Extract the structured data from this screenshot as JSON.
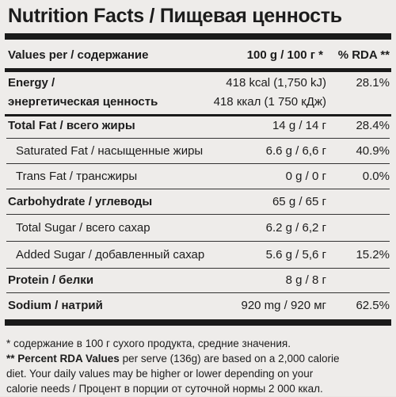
{
  "title": "Nutrition Facts / Пищевая ценность",
  "header": {
    "label": "Values per / содержание",
    "amount": "100 g / 100 г *",
    "rda": "% RDA **"
  },
  "energy": {
    "label1": "Energy /",
    "label2": "энергетическая ценность",
    "amount1": "418 kcal (1,750 kJ)",
    "amount2": "418 ккал (1 750 кДж)",
    "rda": "28.1%"
  },
  "rows": [
    {
      "label": "Total Fat / всего жиры",
      "amount": "14 g / 14 г",
      "rda": "28.4%"
    },
    {
      "label": "Saturated Fat / насыщенные жиры",
      "amount": "6.6 g / 6,6 г",
      "rda": "40.9%"
    },
    {
      "label": "Trans Fat / трансжиры",
      "amount": "0 g / 0 г",
      "rda": "0.0%"
    },
    {
      "label": "Carbohydrate / углеводы",
      "amount": "65 g / 65 г",
      "rda": ""
    },
    {
      "label": "Total Sugar / всего сахар",
      "amount": "6.2 g / 6,2 г",
      "rda": ""
    },
    {
      "label": "Added Sugar / добавленный сахар",
      "amount": "5.6 g / 5,6 г",
      "rda": "15.2%"
    },
    {
      "label": "Protein / белки",
      "amount": "8 g / 8 г",
      "rda": ""
    },
    {
      "label": "Sodium / натрий",
      "amount": "920 mg / 920 мг",
      "rda": "62.5%"
    }
  ],
  "footnotes": {
    "line1": "* содержание в 100 г сухого продукта, средние значения.",
    "line2_bold": "** Percent RDA Values",
    "line2_rest": " per serve (136g) are based on a 2,000 calorie",
    "line3": "diet. Your daily values may be higher or lower depending on your",
    "line4": "calorie needs / Процент в порции от суточной нормы 2 000 ккал."
  }
}
